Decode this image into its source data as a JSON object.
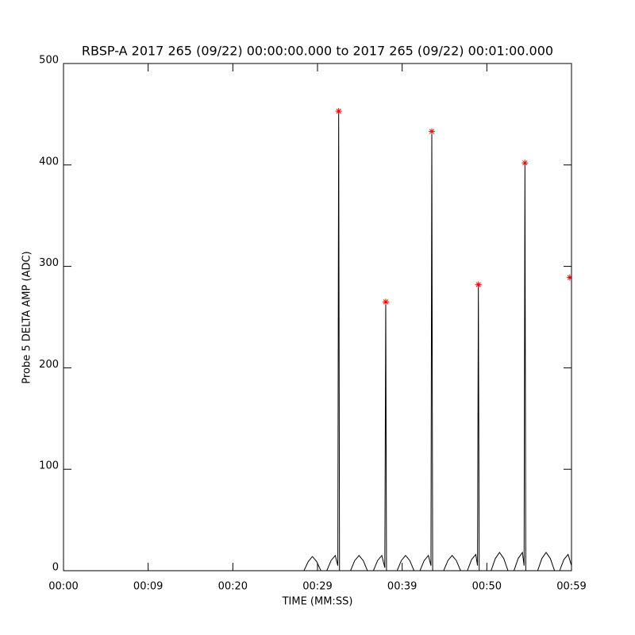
{
  "chart_data": {
    "type": "line",
    "title": "RBSP-A 2017 265 (09/22) 00:00:00.000 to 2017 265 (09/22) 00:01:00.000",
    "x_label": "TIME (MM:SS)",
    "y_label": "Probe 5 DELTA AMP (ADC)",
    "xlim": [
      0,
      60
    ],
    "ylim": [
      0,
      500
    ],
    "xticks": [
      {
        "value": 0,
        "label": "00:00"
      },
      {
        "value": 10,
        "label": "00:09"
      },
      {
        "value": 20,
        "label": "00:20"
      },
      {
        "value": 30,
        "label": "00:29"
      },
      {
        "value": 40,
        "label": "00:39"
      },
      {
        "value": 50,
        "label": "00:50"
      },
      {
        "value": 60,
        "label": "00:59"
      }
    ],
    "yticks": [
      0,
      100,
      200,
      300,
      400,
      500
    ],
    "series": [
      {
        "type": "line",
        "color": "#000000",
        "x": [
          27.0,
          28.4,
          28.9,
          29.4,
          29.9,
          30.4,
          31.1,
          31.6,
          32.1,
          32.4,
          32.5,
          32.6,
          33.9,
          34.4,
          34.9,
          35.4,
          35.9,
          36.6,
          37.1,
          37.6,
          37.95,
          38.06,
          38.15,
          39.4,
          39.9,
          40.4,
          40.9,
          41.4,
          42.1,
          42.6,
          43.1,
          43.4,
          43.5,
          43.6,
          44.9,
          45.4,
          45.9,
          46.4,
          46.9,
          47.7,
          48.2,
          48.7,
          48.9,
          49.0,
          49.1,
          50.5,
          51.0,
          51.5,
          52.0,
          52.5,
          53.2,
          53.7,
          54.2,
          54.4,
          54.5,
          54.6,
          56.0,
          56.5,
          57.0,
          57.5,
          58.0,
          58.6,
          59.1,
          59.6,
          60.0
        ],
        "values": [
          0,
          0,
          9,
          14,
          9,
          0,
          0,
          10,
          15,
          5,
          453,
          0,
          0,
          10,
          15,
          10,
          0,
          0,
          10,
          15,
          3,
          265,
          0,
          0,
          10,
          15,
          10,
          0,
          0,
          10,
          15,
          5,
          433,
          0,
          0,
          10,
          15,
          10,
          0,
          0,
          11,
          16,
          5,
          282,
          0,
          0,
          12,
          18,
          12,
          0,
          0,
          12,
          18,
          5,
          402,
          0,
          0,
          12,
          18,
          12,
          0,
          0,
          11,
          16,
          5
        ]
      },
      {
        "type": "scatter",
        "marker": "asterisk",
        "color": "#ff0000",
        "x": [
          32.5,
          38.06,
          43.5,
          49.0,
          54.5,
          59.8
        ],
        "values": [
          453,
          265,
          433,
          282,
          402,
          289
        ]
      }
    ]
  }
}
